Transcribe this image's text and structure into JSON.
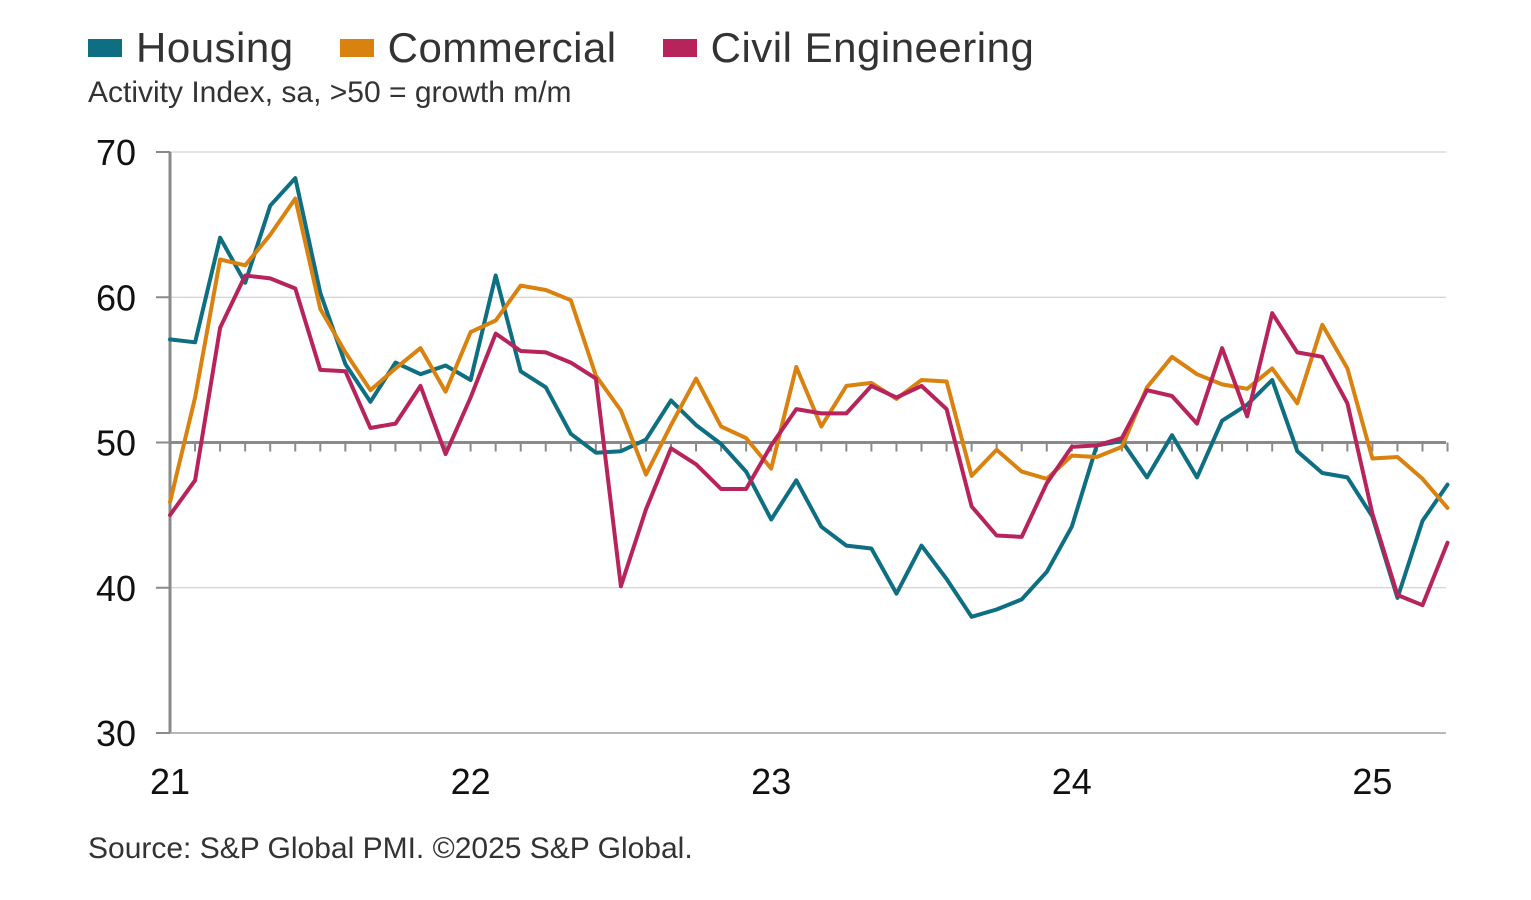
{
  "legend": [
    {
      "name": "Housing",
      "color": "#0e6e82"
    },
    {
      "name": "Commercial",
      "color": "#d9820f"
    },
    {
      "name": "Civil Engineering",
      "color": "#b7245c"
    }
  ],
  "subtitle": "Activity Index, sa, >50 = growth m/m",
  "source": "Source: S&P Global PMI. ©2025 S&P Global.",
  "chart_data": {
    "type": "line",
    "title": "",
    "ylabel": "Activity Index, sa, >50 = growth m/m",
    "xlabel": "",
    "ylim": [
      30,
      70
    ],
    "yticks": [
      "30",
      "40",
      "50",
      "60",
      "70"
    ],
    "xticks": [
      "21",
      "22",
      "23",
      "24",
      "25"
    ],
    "xtick_month_index": [
      0,
      12,
      24,
      36,
      48
    ],
    "reference_line": 50,
    "grid": "horizontal",
    "legend_position": "top-left",
    "x_start": "2021-01",
    "series": [
      {
        "name": "Housing",
        "color": "#0e6e82",
        "values": [
          57.1,
          56.9,
          64.1,
          61.0,
          66.3,
          68.2,
          60.3,
          55.4,
          52.8,
          55.5,
          54.7,
          55.3,
          54.3,
          61.5,
          54.9,
          53.8,
          50.6,
          49.3,
          49.4,
          50.2,
          52.9,
          51.2,
          49.9,
          48.0,
          44.7,
          47.4,
          44.2,
          42.9,
          42.7,
          39.6,
          42.9,
          40.6,
          38.0,
          38.5,
          39.2,
          41.1,
          44.2,
          49.8,
          50.1,
          47.6,
          50.5,
          47.6,
          51.5,
          52.6,
          54.3,
          49.4,
          47.9,
          47.6,
          44.9,
          39.3,
          44.6,
          47.1
        ]
      },
      {
        "name": "Commercial",
        "color": "#d9820f",
        "values": [
          45.9,
          53.1,
          62.6,
          62.2,
          64.3,
          66.8,
          59.2,
          56.2,
          53.6,
          55.1,
          56.5,
          53.5,
          57.6,
          58.4,
          60.8,
          60.5,
          59.8,
          54.6,
          52.2,
          47.8,
          51.2,
          54.4,
          51.1,
          50.3,
          48.2,
          55.2,
          51.1,
          53.9,
          54.1,
          53.0,
          54.3,
          54.2,
          47.7,
          49.5,
          48.0,
          47.5,
          49.1,
          49.0,
          49.7,
          53.8,
          55.9,
          54.7,
          54.0,
          53.7,
          55.1,
          52.7,
          58.1,
          55.1,
          48.9,
          49.0,
          47.5,
          45.5
        ]
      },
      {
        "name": "Civil Engineering",
        "color": "#b7245c",
        "values": [
          45.0,
          47.4,
          57.9,
          61.5,
          61.3,
          60.6,
          55.0,
          54.9,
          51.0,
          51.3,
          53.9,
          49.2,
          53.1,
          57.5,
          56.3,
          56.2,
          55.5,
          54.4,
          40.1,
          45.4,
          49.6,
          48.5,
          46.8,
          46.8,
          49.8,
          52.3,
          52.0,
          52.0,
          53.9,
          53.1,
          53.9,
          52.3,
          45.6,
          43.6,
          43.5,
          47.2,
          49.7,
          49.8,
          50.3,
          53.6,
          53.2,
          51.3,
          56.5,
          51.8,
          58.9,
          56.2,
          55.9,
          52.7,
          45.1,
          39.5,
          38.8,
          43.1
        ]
      }
    ]
  }
}
